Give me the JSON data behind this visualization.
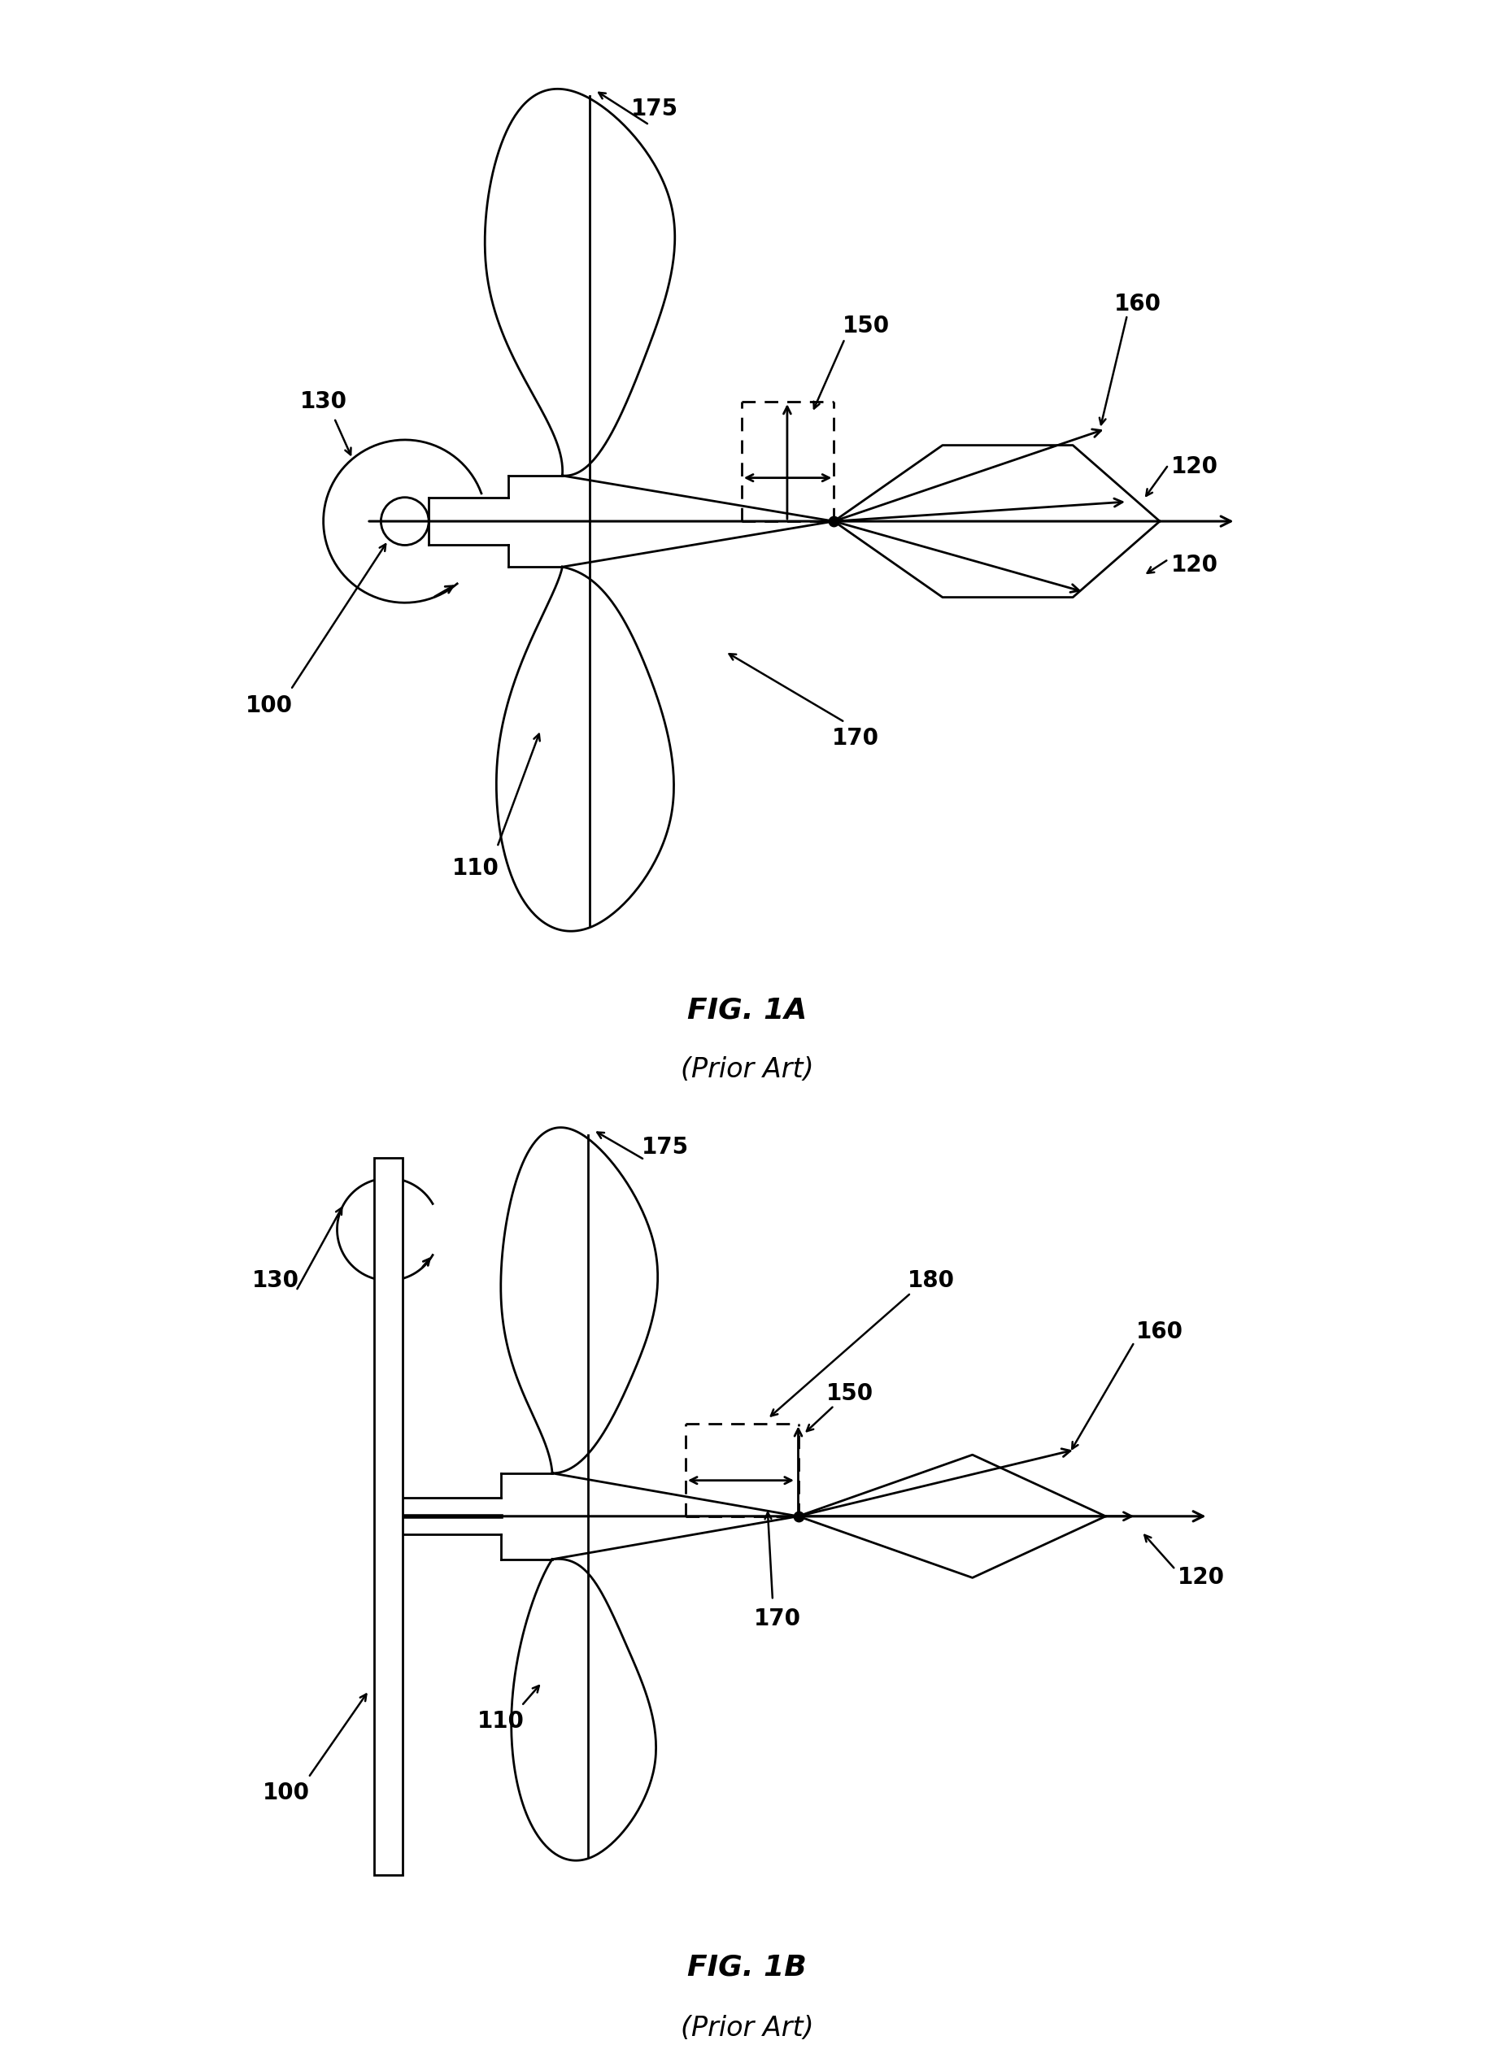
{
  "fig_title_1": "FIG. 1A",
  "fig_subtitle_1": "(Prior Art)",
  "fig_title_2": "FIG. 1B",
  "fig_subtitle_2": "(Prior Art)",
  "bg": "#ffffff",
  "lc": "#000000",
  "lw": 2.0,
  "fs": 20,
  "fs_title": 26,
  "fs_sub": 24
}
